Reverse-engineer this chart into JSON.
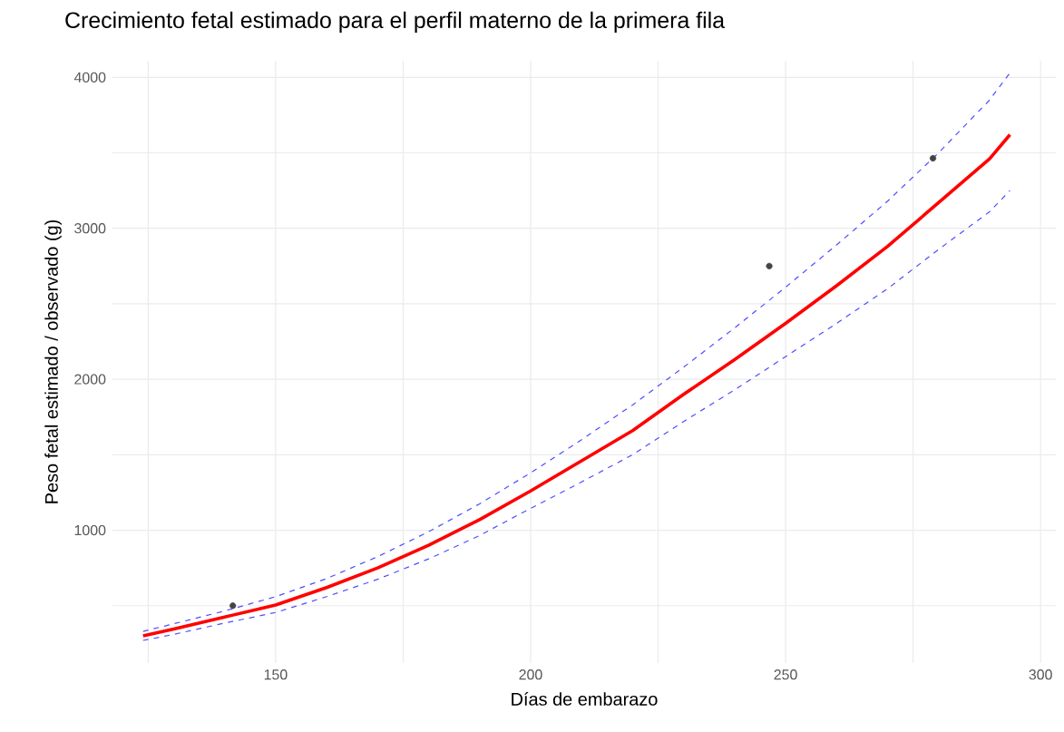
{
  "chart_data": {
    "type": "line",
    "title": "Crecimiento fetal estimado para el perfil materno de la primera fila",
    "xlabel": "Días de embarazo",
    "ylabel": "Peso fetal estimado / observado (g)",
    "xlim": [
      118,
      303
    ],
    "ylim": [
      120,
      4110
    ],
    "xticks": [
      {
        "value": 125,
        "label": null
      },
      150,
      {
        "value": 175,
        "label": null
      },
      200,
      {
        "value": 225,
        "label": null
      },
      250,
      {
        "value": 275,
        "label": null
      },
      300
    ],
    "yticks": [
      {
        "value": 500,
        "label": null
      },
      1000,
      {
        "value": 1500,
        "label": null
      },
      2000,
      {
        "value": 2500,
        "label": null
      },
      3000,
      {
        "value": 3500,
        "label": null
      },
      4000
    ],
    "grid": true,
    "series": [
      {
        "color": "#ff0000",
        "line_style": "solid",
        "x": [
          124,
          130,
          140,
          150,
          160,
          170,
          180,
          190,
          200,
          210,
          220,
          230,
          240,
          250,
          260,
          270,
          280,
          290,
          294
        ],
        "values": [
          300,
          345,
          425,
          505,
          620,
          750,
          900,
          1070,
          1260,
          1460,
          1660,
          1900,
          2130,
          2370,
          2620,
          2880,
          3170,
          3460,
          3620
        ]
      },
      {
        "color": "#4d4dff",
        "line_style": "dashed",
        "x": [
          124,
          130,
          140,
          150,
          160,
          170,
          180,
          190,
          200,
          210,
          220,
          230,
          240,
          250,
          260,
          270,
          280,
          290,
          294
        ],
        "values": [
          330,
          380,
          465,
          560,
          680,
          825,
          990,
          1175,
          1380,
          1600,
          1830,
          2080,
          2340,
          2610,
          2890,
          3180,
          3500,
          3850,
          4030
        ]
      },
      {
        "color": "#4d4dff",
        "line_style": "dashed",
        "x": [
          124,
          130,
          140,
          150,
          160,
          170,
          180,
          190,
          200,
          210,
          220,
          230,
          240,
          250,
          260,
          270,
          280,
          290,
          294
        ],
        "values": [
          270,
          310,
          385,
          455,
          560,
          675,
          810,
          965,
          1145,
          1320,
          1500,
          1720,
          1930,
          2150,
          2370,
          2600,
          2860,
          3110,
          3250
        ]
      },
      {
        "type": "scatter",
        "color": "#444444",
        "marker": "circle",
        "x": [
          141.6,
          246.8,
          278.9
        ],
        "values": [
          500,
          2750,
          3464
        ]
      }
    ]
  }
}
